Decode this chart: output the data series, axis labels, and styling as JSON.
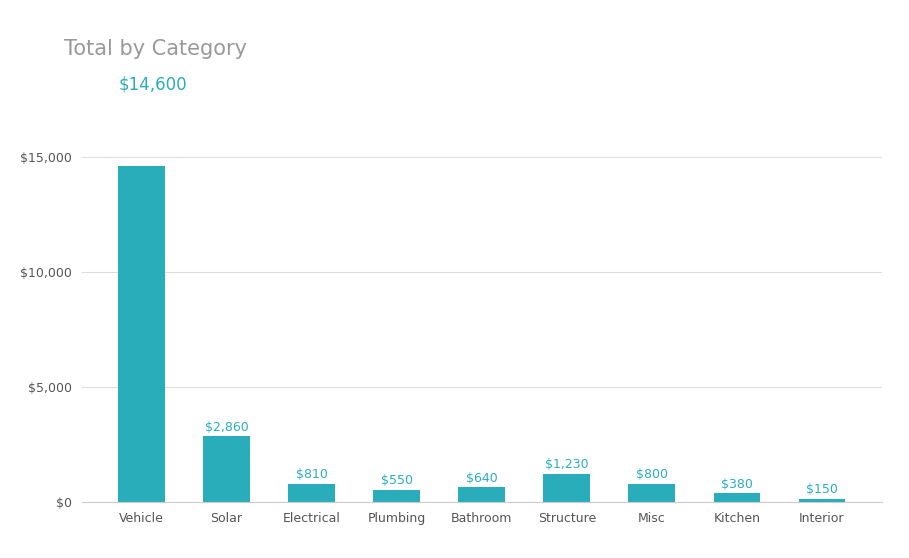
{
  "title": "Total by Category",
  "subtitle": "$14,600",
  "categories": [
    "Vehicle",
    "Solar",
    "Electrical",
    "Plumbing",
    "Bathroom",
    "Structure",
    "Misc",
    "Kitchen",
    "Interior"
  ],
  "values": [
    14600,
    2860,
    810,
    550,
    640,
    1230,
    800,
    380,
    150
  ],
  "labels": [
    "",
    "$2,860",
    "$810",
    "$550",
    "$640",
    "$1,230",
    "$800",
    "$380",
    "$150"
  ],
  "bar_color": "#2AADBB",
  "label_color": "#2AADBB",
  "title_color": "#999999",
  "subtitle_color": "#2AADBB",
  "title_fontsize": 15,
  "subtitle_fontsize": 12,
  "label_fontsize": 9,
  "tick_label_fontsize": 9,
  "ylim": [
    0,
    16500
  ],
  "yticks": [
    0,
    5000,
    10000,
    15000
  ],
  "ytick_labels": [
    "$0",
    "$5,000",
    "$10,000",
    "$15,000"
  ],
  "background_color": "#ffffff",
  "grid_color": "#dddddd"
}
